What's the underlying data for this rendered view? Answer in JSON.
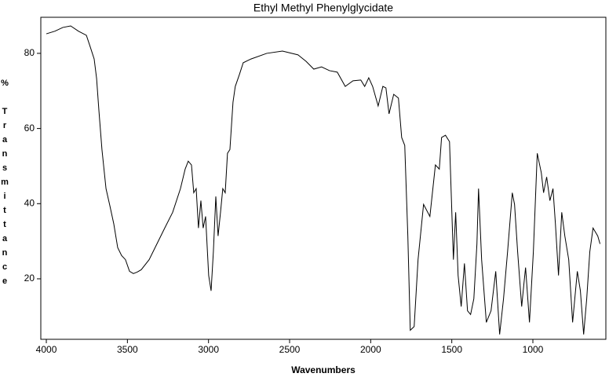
{
  "chart_data": {
    "type": "line",
    "title": "Ethyl Methyl Phenylglycidate",
    "x_label": "Wavenumbers",
    "y_label": "% Transmittance",
    "color": "#000000",
    "xlim": [
      4034,
      550
    ],
    "ylim": [
      3.9,
      89.6
    ],
    "xticks": [
      4000,
      3500,
      3000,
      2500,
      2000,
      1500,
      1000
    ],
    "yticks": [
      20,
      40,
      60,
      80
    ],
    "x": [
      4000,
      3947,
      3898,
      3850,
      3802,
      3753,
      3729,
      3705,
      3690,
      3676,
      3657,
      3632,
      3608,
      3584,
      3560,
      3536,
      3512,
      3487,
      3463,
      3439,
      3415,
      3366,
      3318,
      3270,
      3221,
      3173,
      3144,
      3125,
      3105,
      3091,
      3076,
      3062,
      3047,
      3033,
      3018,
      2999,
      2984,
      2970,
      2955,
      2941,
      2926,
      2912,
      2897,
      2883,
      2868,
      2849,
      2835,
      2810,
      2786,
      2738,
      2641,
      2544,
      2448,
      2399,
      2351,
      2303,
      2254,
      2206,
      2157,
      2109,
      2061,
      2037,
      2012,
      1988,
      1954,
      1925,
      1906,
      1887,
      1858,
      1829,
      1809,
      1790,
      1771,
      1756,
      1732,
      1708,
      1674,
      1635,
      1601,
      1577,
      1563,
      1539,
      1514,
      1490,
      1476,
      1461,
      1442,
      1422,
      1403,
      1384,
      1364,
      1345,
      1335,
      1316,
      1287,
      1258,
      1229,
      1205,
      1181,
      1156,
      1127,
      1113,
      1094,
      1069,
      1055,
      1045,
      1021,
      997,
      973,
      948,
      934,
      915,
      895,
      876,
      861,
      842,
      822,
      803,
      779,
      755,
      726,
      707,
      687,
      668,
      649,
      629,
      600,
      586
    ],
    "values": [
      85.2,
      85.9,
      86.9,
      87.3,
      85.9,
      84.8,
      81.7,
      78.5,
      73.3,
      64.9,
      54.4,
      44.0,
      39.4,
      34.6,
      28.3,
      26.2,
      25.1,
      22.0,
      21.4,
      21.8,
      22.4,
      25.1,
      29.3,
      33.5,
      37.7,
      44.0,
      49.2,
      51.3,
      50.3,
      42.9,
      44.0,
      33.5,
      40.8,
      33.5,
      36.6,
      20.9,
      16.8,
      27.2,
      41.9,
      31.4,
      37.7,
      44.0,
      42.9,
      53.4,
      54.4,
      67.0,
      71.2,
      74.3,
      77.5,
      78.5,
      80.0,
      80.6,
      79.6,
      77.9,
      75.8,
      76.4,
      75.4,
      75.0,
      71.2,
      72.7,
      72.9,
      71.2,
      73.5,
      71.2,
      66.0,
      71.2,
      70.8,
      63.9,
      69.1,
      68.1,
      57.6,
      55.5,
      31.4,
      6.3,
      7.3,
      25.1,
      39.8,
      36.6,
      50.3,
      49.2,
      57.6,
      58.2,
      56.5,
      25.1,
      37.7,
      20.9,
      12.6,
      24.1,
      11.5,
      10.5,
      14.7,
      29.3,
      44.0,
      25.1,
      8.4,
      11.5,
      22.0,
      5.2,
      14.7,
      27.2,
      42.9,
      39.8,
      27.2,
      12.6,
      18.8,
      23.0,
      8.4,
      27.2,
      53.4,
      48.2,
      42.9,
      47.1,
      40.8,
      44.0,
      34.6,
      20.9,
      37.7,
      31.4,
      25.1,
      8.4,
      22.0,
      16.8,
      5.2,
      14.7,
      27.2,
      33.5,
      31.4,
      29.3
    ]
  }
}
